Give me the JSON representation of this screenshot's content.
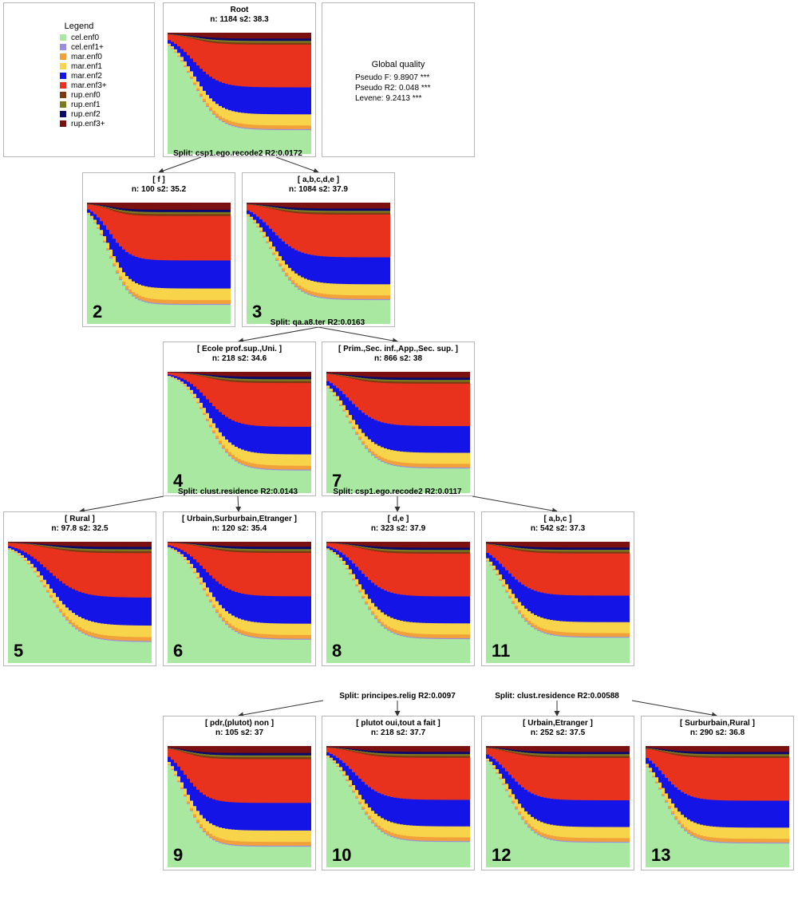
{
  "legend": {
    "title": "Legend",
    "items": [
      {
        "label": "cel.enf0",
        "color": "#a8e8a0"
      },
      {
        "label": "cel.enf1+",
        "color": "#9a8ee0"
      },
      {
        "label": "mar.enf0",
        "color": "#f2a039"
      },
      {
        "label": "mar.enf1",
        "color": "#f7d44a"
      },
      {
        "label": "mar.enf2",
        "color": "#1414e6"
      },
      {
        "label": "mar.enf3+",
        "color": "#e8321e"
      },
      {
        "label": "rup.enf0",
        "color": "#7a3a12"
      },
      {
        "label": "rup.enf1",
        "color": "#7d7a1e"
      },
      {
        "label": "rup.enf2",
        "color": "#0a0a6e"
      },
      {
        "label": "rup.enf3+",
        "color": "#7a1010"
      }
    ]
  },
  "quality": {
    "title": "Global quality",
    "lines": [
      "Pseudo F: 9.8907 ***",
      "Pseudo R2: 0.048 ***",
      "Levene: 9.2413 ***"
    ]
  },
  "nodes": [
    {
      "id": "root",
      "title": "Root",
      "stats": "n: 1184 s2: 38.3",
      "number": "",
      "split": "Split: csp1.ego.recode2 R2:0.0172",
      "profile": {
        "s": 0.2,
        "w": 0.35,
        "g": 0.74,
        "c": 0.06
      }
    },
    {
      "id": "2",
      "title": "[ f ]",
      "stats": "n: 100 s2: 35.2",
      "number": "2",
      "split": "",
      "profile": {
        "s": 0.17,
        "w": 0.28,
        "g": 0.8,
        "c": 0.07
      }
    },
    {
      "id": "3",
      "title": "[ a,b,c,d,e ]",
      "stats": "n: 1084 s2: 37.9",
      "number": "3",
      "split": "Split: qa.a8.ter R2:0.0163",
      "profile": {
        "s": 0.2,
        "w": 0.36,
        "g": 0.74,
        "c": 0.06
      }
    },
    {
      "id": "4",
      "title": "[ Ecole prof.sup.,Uni. ]",
      "stats": "n: 218 s2: 34.6",
      "number": "4",
      "split": "Split: clust.residence R2:0.0143",
      "profile": {
        "s": 0.3,
        "w": 0.35,
        "g": 0.76,
        "c": 0.05
      }
    },
    {
      "id": "7",
      "title": "[ Prim.,Sec. inf.,App.,Sec. sup. ]",
      "stats": "n: 866 s2: 38",
      "number": "7",
      "split": "Split: csp1.ego.recode2 R2:0.0117",
      "profile": {
        "s": 0.18,
        "w": 0.36,
        "g": 0.73,
        "c": 0.06
      }
    },
    {
      "id": "5",
      "title": "[ Rural ]",
      "stats": "n: 97.8 s2: 32.5",
      "number": "5",
      "split": "",
      "profile": {
        "s": 0.3,
        "w": 0.42,
        "g": 0.78,
        "c": 0.05
      }
    },
    {
      "id": "6",
      "title": "[ Urbain,Surburbain,Etranger ]",
      "stats": "n: 120 s2: 35.4",
      "number": "6",
      "split": "",
      "profile": {
        "s": 0.28,
        "w": 0.36,
        "g": 0.75,
        "c": 0.05
      }
    },
    {
      "id": "8",
      "title": "[ d,e ]",
      "stats": "n: 323 s2: 37.9",
      "number": "8",
      "split": "Split: principes.relig R2:0.0097",
      "profile": {
        "s": 0.25,
        "w": 0.35,
        "g": 0.74,
        "c": 0.06
      }
    },
    {
      "id": "11",
      "title": "[ a,b,c ]",
      "stats": "n: 542 s2: 37.3",
      "number": "11",
      "split": "Split: clust.residence R2:0.00588",
      "profile": {
        "s": 0.16,
        "w": 0.36,
        "g": 0.72,
        "c": 0.06
      }
    },
    {
      "id": "9",
      "title": "[ pdr,(plutot) non ]",
      "stats": "n: 105 s2: 37",
      "number": "9",
      "split": "",
      "profile": {
        "s": 0.14,
        "w": 0.3,
        "g": 0.78,
        "c": 0.07
      }
    },
    {
      "id": "10",
      "title": "[ plutot oui,tout a fait ]",
      "stats": "n: 218 s2: 37.7",
      "number": "10",
      "split": "",
      "profile": {
        "s": 0.22,
        "w": 0.36,
        "g": 0.72,
        "c": 0.06
      }
    },
    {
      "id": "12",
      "title": "[ Urbain,Etranger ]",
      "stats": "n: 252 s2: 37.5",
      "number": "12",
      "split": "",
      "profile": {
        "s": 0.18,
        "w": 0.34,
        "g": 0.73,
        "c": 0.06
      }
    },
    {
      "id": "13",
      "title": "[ Surburbain,Rural ]",
      "stats": "n: 290 s2: 36.8",
      "number": "13",
      "split": "",
      "profile": {
        "s": 0.14,
        "w": 0.33,
        "g": 0.74,
        "c": 0.06
      }
    }
  ]
}
